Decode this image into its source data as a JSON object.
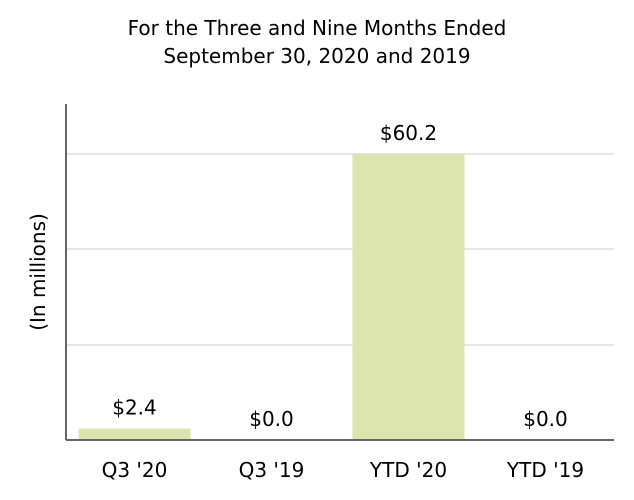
{
  "chart_data": {
    "type": "bar",
    "title": [
      "For the Three and Nine Months Ended",
      "September 30, 2020 and 2019"
    ],
    "ylabel": "(In millions)",
    "xlabel": "",
    "categories": [
      "Q3 '20",
      "Q3 '19",
      "YTD '20",
      "YTD '19"
    ],
    "values": [
      2.4,
      0.0,
      60.2,
      0.0
    ],
    "data_labels": [
      "$2.4",
      "$0.0",
      "$60.2",
      "$0.0"
    ],
    "ylim": [
      0,
      70
    ],
    "grid": true,
    "bar_color": "#dbe5ad",
    "grid_color": "#e6e6e6",
    "axis_color": "#666666"
  }
}
